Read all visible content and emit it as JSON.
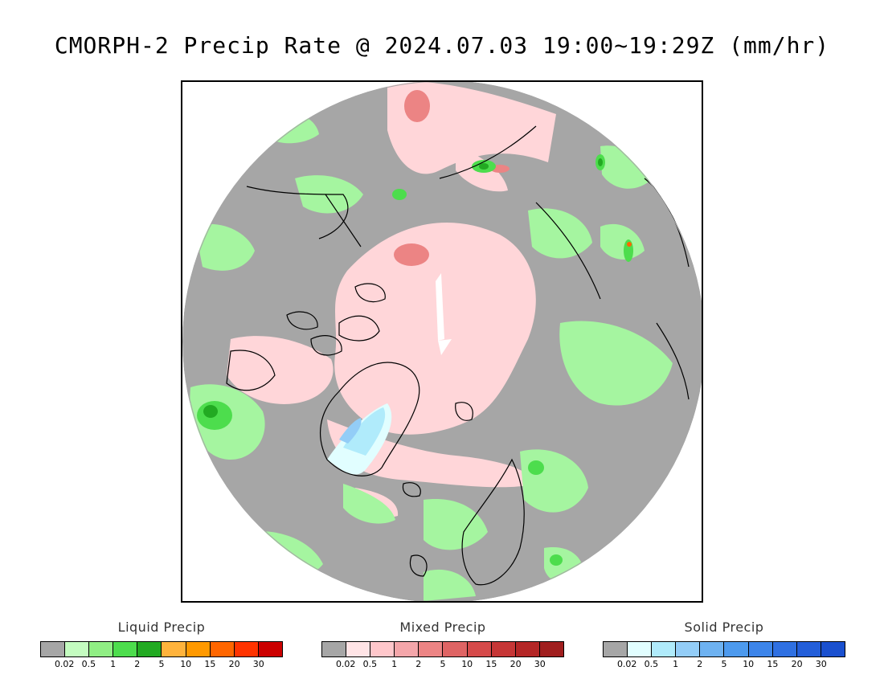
{
  "title": "CMORPH-2 Precip Rate @ 2024.07.03 19:00~19:29Z (mm/hr)",
  "map": {
    "background": "#ffffff",
    "no_precip_color": "#a6a6a6",
    "coast_color": "#000000"
  },
  "legends": [
    {
      "name": "liquid",
      "title": "Liquid Precip",
      "colors": [
        "#a6a6a6",
        "#c4fcc0",
        "#90ee84",
        "#4ddd4d",
        "#22aa22",
        "#ffb33c",
        "#ff9900",
        "#ff6600",
        "#ff3300",
        "#cc0000"
      ],
      "ticks": [
        "0.02",
        "0.5",
        "1",
        "2",
        "5",
        "10",
        "15",
        "20",
        "30"
      ]
    },
    {
      "name": "mixed",
      "title": "Mixed Precip",
      "colors": [
        "#a6a6a6",
        "#ffe4e6",
        "#ffc7cb",
        "#f4a6aa",
        "#ec8484",
        "#df6464",
        "#d54a4a",
        "#c63636",
        "#b42626",
        "#a01e1e"
      ],
      "ticks": [
        "0.02",
        "0.5",
        "1",
        "2",
        "5",
        "10",
        "15",
        "20",
        "30"
      ]
    },
    {
      "name": "solid",
      "title": "Solid Precip",
      "colors": [
        "#a6a6a6",
        "#e1feff",
        "#b0ebfb",
        "#93cdf7",
        "#6eb2f1",
        "#4d9aee",
        "#3d85ea",
        "#2f70e2",
        "#235ed9",
        "#1a50cf"
      ],
      "ticks": [
        "0.02",
        "0.5",
        "1",
        "2",
        "5",
        "10",
        "15",
        "20",
        "30"
      ]
    }
  ]
}
